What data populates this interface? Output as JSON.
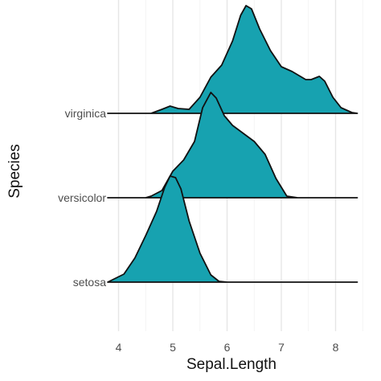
{
  "chart_data": {
    "type": "ridgeline",
    "xlabel": "Sepal.Length",
    "ylabel": "Species",
    "xlim": [
      3.7,
      8.5
    ],
    "x_ticks": [
      4,
      5,
      6,
      7,
      8
    ],
    "grid": true,
    "fill_color": "#17a2b0",
    "line_color": "#111111",
    "categories": [
      "setosa",
      "versicolor",
      "virginica"
    ],
    "series": [
      {
        "name": "setosa",
        "range": [
          3.8,
          8.4
        ],
        "points": [
          [
            3.8,
            0
          ],
          [
            4.1,
            0.1
          ],
          [
            4.3,
            0.3
          ],
          [
            4.5,
            0.58
          ],
          [
            4.7,
            0.88
          ],
          [
            4.85,
            1.18
          ],
          [
            4.95,
            1.32
          ],
          [
            5.05,
            1.3
          ],
          [
            5.15,
            1.16
          ],
          [
            5.3,
            0.76
          ],
          [
            5.5,
            0.36
          ],
          [
            5.7,
            0.09
          ],
          [
            5.85,
            0.01
          ],
          [
            6.0,
            0
          ],
          [
            8.4,
            0
          ]
        ]
      },
      {
        "name": "versicolor",
        "range": [
          3.8,
          8.4
        ],
        "points": [
          [
            3.8,
            0
          ],
          [
            4.5,
            0
          ],
          [
            4.6,
            0.02
          ],
          [
            4.8,
            0.09
          ],
          [
            5.0,
            0.33
          ],
          [
            5.2,
            0.47
          ],
          [
            5.4,
            0.7
          ],
          [
            5.55,
            1.12
          ],
          [
            5.7,
            1.31
          ],
          [
            5.8,
            1.24
          ],
          [
            5.95,
            1.02
          ],
          [
            6.1,
            0.9
          ],
          [
            6.3,
            0.8
          ],
          [
            6.5,
            0.7
          ],
          [
            6.7,
            0.54
          ],
          [
            6.9,
            0.24
          ],
          [
            7.1,
            0.02
          ],
          [
            7.3,
            0
          ],
          [
            8.4,
            0
          ]
        ]
      },
      {
        "name": "virginica",
        "range": [
          3.8,
          8.4
        ],
        "points": [
          [
            3.8,
            0
          ],
          [
            4.6,
            0
          ],
          [
            4.8,
            0.05
          ],
          [
            4.95,
            0.09
          ],
          [
            5.1,
            0.06
          ],
          [
            5.3,
            0.05
          ],
          [
            5.5,
            0.2
          ],
          [
            5.7,
            0.45
          ],
          [
            5.9,
            0.6
          ],
          [
            6.1,
            0.9
          ],
          [
            6.25,
            1.22
          ],
          [
            6.35,
            1.34
          ],
          [
            6.45,
            1.3
          ],
          [
            6.6,
            1.05
          ],
          [
            6.8,
            0.78
          ],
          [
            7.0,
            0.58
          ],
          [
            7.2,
            0.52
          ],
          [
            7.45,
            0.42
          ],
          [
            7.55,
            0.42
          ],
          [
            7.7,
            0.46
          ],
          [
            7.8,
            0.4
          ],
          [
            7.95,
            0.2
          ],
          [
            8.1,
            0.07
          ],
          [
            8.3,
            0.01
          ],
          [
            8.4,
            0
          ]
        ]
      }
    ]
  }
}
